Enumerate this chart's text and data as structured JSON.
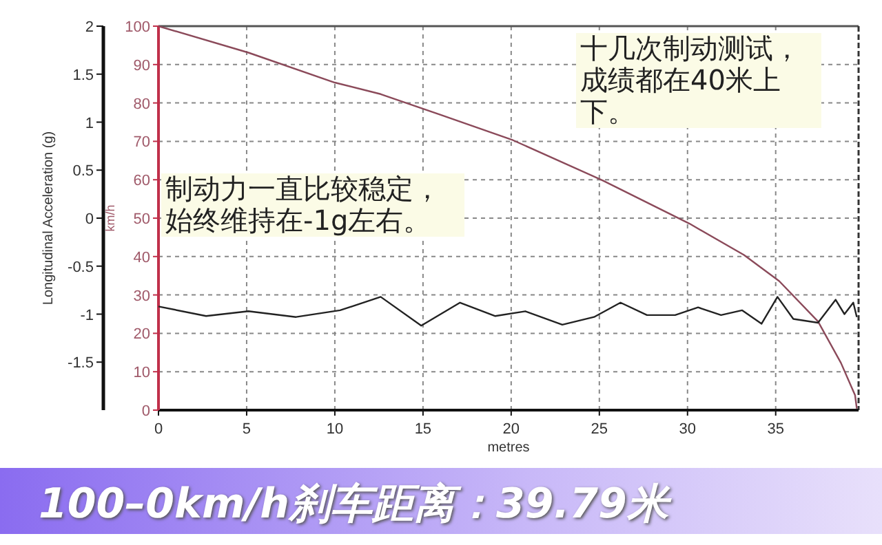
{
  "chart_data": {
    "type": "line",
    "title": "100–0km/h刹车距离：39.79米",
    "xlabel": "metres",
    "ylabel": "Longitudinal Acceleration (g)",
    "y2label": "km/h",
    "xlim": [
      0,
      39.7
    ],
    "xticks": [
      0,
      5,
      10,
      15,
      20,
      25,
      30,
      35
    ],
    "ylim": [
      -2,
      2
    ],
    "yticks": [
      -1.5,
      -1,
      -0.5,
      0,
      0.5,
      1,
      1.5,
      2
    ],
    "y2lim": [
      0,
      100
    ],
    "y2ticks": [
      0,
      10,
      20,
      30,
      40,
      50,
      60,
      70,
      80,
      90,
      100
    ],
    "grid": true,
    "marker": "none",
    "series": [
      {
        "color": "#8b4a5a",
        "axis": "y2",
        "x": [
          0,
          5.1,
          10,
          12.6,
          16,
          20.1,
          25.2,
          30.1,
          33.2,
          35.2,
          37.4,
          38.7,
          39.5,
          39.6
        ],
        "values": [
          100,
          93.1,
          85.3,
          82.3,
          76.9,
          70.3,
          59.8,
          48.6,
          40.4,
          33.6,
          23.1,
          12.3,
          3.9,
          0.4
        ]
      },
      {
        "color": "#222222",
        "axis": "y",
        "x": [
          0,
          2.7,
          5.1,
          7.8,
          10.3,
          12.6,
          14.9,
          17.1,
          19.1,
          20.8,
          22.9,
          24.7,
          26.2,
          27.7,
          29.3,
          30.6,
          31.9,
          33.1,
          34.2,
          35.1,
          36,
          37.4,
          38.4,
          38.9,
          39.4,
          39.6
        ],
        "values": [
          -0.92,
          -1.02,
          -0.97,
          -1.03,
          -0.96,
          -0.82,
          -1.12,
          -0.88,
          -1.02,
          -0.97,
          -1.11,
          -1.03,
          -0.88,
          -1.01,
          -1.01,
          -0.93,
          -1.01,
          -0.96,
          -1.1,
          -0.82,
          -1.05,
          -1.09,
          -0.85,
          -1,
          -0.88,
          -1.03
        ]
      }
    ],
    "annotations": [
      "十几次制动测试，成绩都在40米上下。",
      "制动力一直比较稳定，始终维持在-1g左右。"
    ]
  }
}
